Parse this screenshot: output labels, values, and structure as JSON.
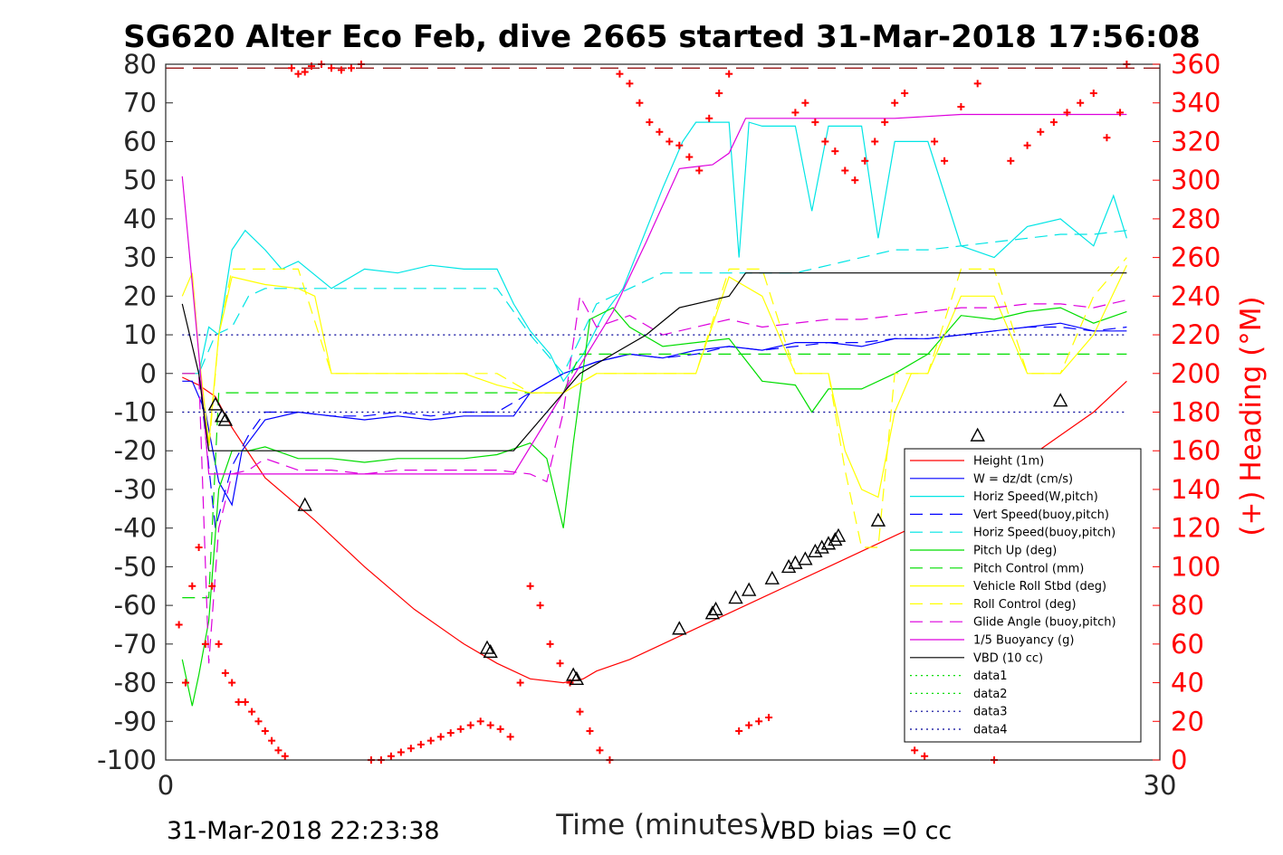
{
  "chart_data": {
    "type": "line",
    "title": "SG620 Alter Eco Feb, dive 2665 started 31-Mar-2018 17:56:08",
    "xlabel": "Time (minutes)",
    "ylabel_right": "(+) Heading (°M)",
    "xlim": [
      0,
      30
    ],
    "ylim": [
      -100,
      80
    ],
    "ylim_right": [
      0,
      360
    ],
    "x_ticks": [
      "0",
      "30"
    ],
    "y_ticks": [
      "80",
      "70",
      "60",
      "50",
      "40",
      "30",
      "20",
      "10",
      "0",
      "-10",
      "-20",
      "-30",
      "-40",
      "-50",
      "-60",
      "-70",
      "-80",
      "-90",
      "-100"
    ],
    "y_ticks_right": [
      "360",
      "340",
      "320",
      "300",
      "280",
      "260",
      "240",
      "220",
      "200",
      "180",
      "160",
      "140",
      "120",
      "100",
      "80",
      "60",
      "40",
      "20",
      "0"
    ],
    "legend_position": "lower-right",
    "footer_left": "31-Mar-2018 22:23:38",
    "footer_right": "VBD bias =0 cc",
    "colors": {
      "red": "#ff0000",
      "blue": "#0000ff",
      "cyan": "#00e5e5",
      "green": "#00dd00",
      "yellow": "#ffff00",
      "magenta": "#dd00dd",
      "black": "#000000",
      "darkred": "#8b0000",
      "navy": "#000099"
    },
    "series": [
      {
        "name": "Height (1m)",
        "color": "#ff0000",
        "dash": "solid",
        "x": [
          0.5,
          1.0,
          1.5,
          2.0,
          3.0,
          4.5,
          6.0,
          7.5,
          9.0,
          10.0,
          11.0,
          12.0,
          12.6,
          13.0,
          14.0,
          15.0,
          16.0,
          17.0,
          18.0,
          19.0,
          20.0,
          21.0,
          22.0,
          23.0,
          24.0,
          25.0,
          26.0,
          27.0,
          28.0,
          29.0
        ],
        "y": [
          -1,
          -3,
          -6,
          -14,
          -27,
          -38,
          -50,
          -61,
          -70,
          -75,
          -79,
          -80,
          -79,
          -77,
          -74,
          -70,
          -66,
          -62,
          -58,
          -54,
          -50,
          -46,
          -42,
          -38,
          -34,
          -29,
          -22,
          -16,
          -10,
          -2
        ]
      },
      {
        "name": "W = dz/dt (cm/s)",
        "color": "#0000ff",
        "dash": "solid",
        "x": [
          0.5,
          0.8,
          1.2,
          1.6,
          2.0,
          2.3,
          3.0,
          4.0,
          5.0,
          6.0,
          7.0,
          8.0,
          9.0,
          10.0,
          10.5,
          11.0,
          12.0,
          13.0,
          14.0,
          15.0,
          16.0,
          17.0,
          18.0,
          19.0,
          20.0,
          21.0,
          22.0,
          23.0,
          24.0,
          25.0,
          26.0,
          27.0,
          28.0,
          29.0
        ],
        "y": [
          -2,
          -2,
          -10,
          -28,
          -34,
          -20,
          -12,
          -10,
          -11,
          -12,
          -11,
          -12,
          -11,
          -11,
          -11,
          -5,
          0,
          3,
          5,
          4,
          6,
          7,
          6,
          8,
          8,
          7,
          9,
          9,
          10,
          11,
          12,
          13,
          11,
          11
        ]
      },
      {
        "name": "Horiz Speed(W,pitch)",
        "color": "#00e5e5",
        "dash": "solid",
        "x": [
          0.5,
          1.0,
          1.3,
          1.6,
          2.0,
          2.4,
          3.0,
          3.5,
          4.0,
          5.0,
          6.0,
          7.0,
          8.0,
          9.0,
          10.0,
          10.5,
          11.0,
          11.6,
          12.0,
          12.6,
          13.2,
          13.8,
          14.4,
          15.0,
          15.6,
          16.0,
          17.0,
          17.3,
          17.6,
          18.0,
          19.0,
          19.5,
          20.0,
          21.0,
          21.5,
          22.0,
          23.0,
          24.0,
          25.0,
          26.0,
          27.0,
          28.0,
          28.6,
          29.0
        ],
        "y": [
          0,
          0,
          12,
          10,
          32,
          37,
          32,
          27,
          29,
          22,
          27,
          26,
          28,
          27,
          27,
          18,
          11,
          5,
          -2,
          5,
          15,
          22,
          35,
          48,
          60,
          65,
          65,
          30,
          65,
          64,
          64,
          42,
          64,
          64,
          35,
          60,
          60,
          33,
          30,
          38,
          40,
          33,
          46,
          35
        ]
      },
      {
        "name": "Vert Speed(buoy,pitch)",
        "color": "#0000ff",
        "dash": "dash",
        "x": [
          0.5,
          1.0,
          1.5,
          2.0,
          2.5,
          3.0,
          4.0,
          5.0,
          6.0,
          7.0,
          8.0,
          9.0,
          10.0,
          11.0,
          12.0,
          13.0,
          14.0,
          15.0,
          16.0,
          17.0,
          18.0,
          19.0,
          20.0,
          21.0,
          22.0,
          23.0,
          24.0,
          25.0,
          26.0,
          27.0,
          28.0,
          29.0
        ],
        "y": [
          0,
          0,
          -40,
          -24,
          -16,
          -10,
          -10,
          -11,
          -11,
          -10,
          -11,
          -10,
          -10,
          -5,
          0,
          3,
          5,
          4,
          5,
          7,
          6,
          7,
          8,
          8,
          9,
          9,
          10,
          11,
          12,
          12,
          11,
          12
        ]
      },
      {
        "name": "Horiz Speed(buoy,pitch)",
        "color": "#00e5e5",
        "dash": "dash",
        "x": [
          0.5,
          1.0,
          1.5,
          2.0,
          2.5,
          3.0,
          4.0,
          5.0,
          6.0,
          7.0,
          8.0,
          9.0,
          10.0,
          11.0,
          12.0,
          13.0,
          14.0,
          15.0,
          16.0,
          17.0,
          18.0,
          19.0,
          20.0,
          21.0,
          22.0,
          23.0,
          24.0,
          25.0,
          26.0,
          27.0,
          28.0,
          29.0
        ],
        "y": [
          0,
          0,
          10,
          12,
          20,
          22,
          22,
          22,
          22,
          22,
          22,
          22,
          22,
          10,
          0,
          18,
          22,
          26,
          26,
          26,
          26,
          26,
          28,
          30,
          32,
          32,
          33,
          34,
          35,
          36,
          36,
          37
        ]
      },
      {
        "name": "Pitch Up (deg)",
        "color": "#00dd00",
        "dash": "solid",
        "x": [
          0.5,
          0.8,
          1.0,
          1.3,
          1.6,
          2.0,
          2.5,
          3.0,
          4.0,
          5.0,
          6.0,
          7.0,
          8.0,
          9.0,
          10.0,
          11.0,
          11.5,
          12.0,
          12.3,
          12.8,
          13.5,
          14.0,
          15.0,
          16.0,
          17.0,
          18.0,
          19.0,
          19.5,
          20.0,
          21.0,
          22.0,
          23.0,
          24.0,
          25.0,
          26.0,
          27.0,
          28.0,
          29.0
        ],
        "y": [
          -74,
          -86,
          -78,
          -64,
          -30,
          -20,
          -20,
          -19,
          -22,
          -22,
          -23,
          -22,
          -22,
          -22,
          -21,
          -18,
          -22,
          -40,
          -18,
          14,
          17,
          12,
          7,
          8,
          9,
          -2,
          -3,
          -10,
          -4,
          -4,
          0,
          5,
          15,
          14,
          16,
          17,
          13,
          16
        ]
      },
      {
        "name": "Pitch Control (mm)",
        "color": "#00dd00",
        "dash": "dash",
        "x": [
          0.5,
          1.3,
          1.6,
          10.0,
          11.0,
          12.0,
          12.5,
          16.0,
          20.0,
          24.0,
          28.0,
          29.0
        ],
        "y": [
          -58,
          -58,
          -5,
          -5,
          -5,
          -5,
          5,
          5,
          5,
          5,
          5,
          5
        ]
      },
      {
        "name": "Vehicle Roll Stbd (deg)",
        "color": "#ffff00",
        "dash": "solid",
        "x": [
          0.5,
          0.8,
          1.0,
          1.3,
          1.6,
          2.0,
          3.0,
          4.0,
          4.5,
          5.0,
          6.0,
          7.0,
          8.0,
          9.0,
          10.0,
          11.0,
          12.0,
          13.0,
          14.0,
          15.0,
          16.0,
          17.0,
          18.0,
          19.0,
          20.0,
          20.5,
          21.0,
          21.5,
          22.0,
          22.5,
          23.0,
          24.0,
          25.0,
          26.0,
          27.0,
          28.0,
          29.0
        ],
        "y": [
          20,
          26,
          5,
          -18,
          10,
          25,
          23,
          22,
          20,
          0,
          0,
          0,
          0,
          0,
          -3,
          -5,
          -5,
          0,
          0,
          0,
          0,
          25,
          20,
          0,
          0,
          -20,
          -30,
          -32,
          -10,
          0,
          0,
          20,
          20,
          0,
          0,
          10,
          28
        ]
      },
      {
        "name": "Roll Control (deg)",
        "color": "#ffff00",
        "dash": "dash",
        "x": [
          0.5,
          1.0,
          1.3,
          1.6,
          2.0,
          3.0,
          4.0,
          5.0,
          6.0,
          7.0,
          8.0,
          9.0,
          10.0,
          11.0,
          12.0,
          13.0,
          14.0,
          15.0,
          16.0,
          17.0,
          18.0,
          19.0,
          20.0,
          20.5,
          21.0,
          21.5,
          22.0,
          23.0,
          24.0,
          25.0,
          26.0,
          27.0,
          28.0,
          29.0
        ],
        "y": [
          0,
          0,
          -20,
          10,
          27,
          27,
          27,
          0,
          0,
          0,
          0,
          0,
          0,
          -5,
          -5,
          0,
          0,
          0,
          0,
          27,
          27,
          0,
          0,
          -25,
          -45,
          -45,
          0,
          0,
          27,
          27,
          0,
          0,
          20,
          30
        ]
      },
      {
        "name": "Glide Angle (buoy,pitch)",
        "color": "#dd00dd",
        "dash": "dash",
        "x": [
          0.5,
          1.0,
          1.3,
          1.6,
          2.0,
          2.5,
          3.0,
          4.0,
          5.0,
          6.0,
          7.0,
          8.0,
          9.0,
          10.0,
          11.0,
          11.5,
          12.0,
          12.5,
          13.0,
          14.0,
          15.0,
          16.0,
          17.0,
          18.0,
          19.0,
          20.0,
          21.0,
          22.0,
          23.0,
          24.0,
          25.0,
          26.0,
          27.0,
          28.0,
          29.0
        ],
        "y": [
          0,
          0,
          -75,
          -40,
          -26,
          -25,
          -22,
          -25,
          -25,
          -26,
          -25,
          -25,
          -25,
          -25,
          -26,
          -28,
          -10,
          20,
          12,
          15,
          10,
          12,
          14,
          12,
          13,
          14,
          14,
          15,
          16,
          17,
          17,
          18,
          18,
          17,
          19
        ]
      },
      {
        "name": "1/5 Buoyancy (g)",
        "color": "#dd00dd",
        "dash": "solid",
        "x": [
          0.5,
          1.0,
          1.3,
          1.6,
          2.0,
          10.0,
          10.5,
          11.5,
          12.5,
          13.5,
          14.5,
          15.5,
          16.5,
          17.0,
          17.5,
          20.0,
          22.0,
          24.0,
          26.0,
          28.0,
          29.0
        ],
        "y": [
          51,
          5,
          -26,
          -26,
          -26,
          -26,
          -26,
          -12,
          2,
          16,
          34,
          53,
          54,
          57,
          66,
          66,
          66,
          67,
          67,
          67,
          67
        ]
      },
      {
        "name": "VBD (10 cc)",
        "color": "#000000",
        "dash": "solid",
        "x": [
          0.5,
          1.0,
          1.3,
          1.6,
          10.0,
          10.5,
          11.5,
          12.5,
          13.5,
          14.5,
          15.5,
          16.5,
          17.0,
          17.5,
          20.0,
          24.0,
          29.0
        ],
        "y": [
          18,
          0,
          -20,
          -20,
          -20,
          -20,
          -10,
          0,
          5,
          10,
          17,
          19,
          20,
          26,
          26,
          26,
          26
        ]
      },
      {
        "name": "data1",
        "color": "#00dd00",
        "dash": "dot",
        "x": [],
        "y": []
      },
      {
        "name": "data2",
        "color": "#00dd00",
        "dash": "dot",
        "x": [],
        "y": []
      },
      {
        "name": "data3",
        "color": "#000099",
        "dash": "dot",
        "x": [
          0.5,
          29.0
        ],
        "y": [
          10,
          10
        ]
      },
      {
        "name": "data4",
        "color": "#000099",
        "dash": "dot",
        "x": [
          0.5,
          29.0
        ],
        "y": [
          -10,
          -10
        ]
      }
    ],
    "reference_line": {
      "color": "#8b0000",
      "dash": "longdash",
      "y_right": 358
    },
    "heading_points": {
      "color": "#ff0000",
      "marker": "+",
      "x": [
        0.4,
        0.6,
        0.8,
        1.0,
        1.2,
        1.4,
        1.6,
        1.8,
        2.0,
        2.2,
        2.4,
        2.6,
        2.8,
        3.0,
        3.2,
        3.4,
        3.6,
        3.8,
        4.0,
        4.2,
        4.4,
        4.7,
        5.0,
        5.3,
        5.6,
        5.9,
        6.2,
        6.5,
        6.8,
        7.1,
        7.4,
        7.7,
        8.0,
        8.3,
        8.6,
        8.9,
        9.2,
        9.5,
        9.8,
        10.1,
        10.4,
        10.7,
        11.0,
        11.3,
        11.6,
        11.9,
        12.2,
        12.5,
        12.8,
        13.1,
        13.4,
        13.7,
        14.0,
        14.3,
        14.6,
        14.9,
        15.2,
        15.5,
        15.8,
        16.1,
        16.4,
        16.7,
        17.0,
        17.3,
        17.6,
        17.9,
        18.2,
        19.0,
        19.3,
        19.6,
        19.9,
        20.2,
        20.5,
        20.8,
        21.1,
        21.4,
        21.7,
        22.0,
        22.3,
        22.6,
        22.9,
        23.2,
        23.5,
        24.0,
        24.5,
        25.0,
        25.5,
        26.0,
        26.4,
        26.8,
        27.2,
        27.6,
        28.0,
        28.4,
        28.8,
        29.0
      ],
      "y_right": [
        70,
        40,
        90,
        110,
        60,
        90,
        60,
        45,
        40,
        30,
        30,
        25,
        20,
        15,
        10,
        5,
        2,
        358,
        355,
        356,
        359,
        360,
        358,
        357,
        358,
        360,
        0,
        0,
        2,
        4,
        6,
        8,
        10,
        12,
        14,
        16,
        18,
        20,
        18,
        16,
        12,
        40,
        90,
        80,
        60,
        50,
        40,
        25,
        15,
        5,
        0,
        355,
        350,
        340,
        330,
        325,
        320,
        318,
        312,
        305,
        332,
        345,
        355,
        15,
        18,
        20,
        22,
        335,
        340,
        330,
        320,
        315,
        305,
        300,
        310,
        320,
        330,
        340,
        345,
        5,
        2,
        320,
        310,
        338,
        350,
        0,
        310,
        318,
        325,
        330,
        335,
        340,
        345,
        322,
        335,
        360
      ]
    },
    "triangle_markers": {
      "x": [
        1.5,
        1.7,
        1.8,
        4.2,
        9.7,
        9.8,
        12.3,
        12.4,
        15.5,
        16.5,
        16.6,
        17.2,
        17.6,
        18.3,
        18.8,
        19.0,
        19.3,
        19.6,
        19.8,
        20.0,
        20.2,
        20.3,
        21.5,
        22.5,
        24.5,
        27.0
      ],
      "y": [
        -8,
        -11,
        -12,
        -34,
        -71,
        -72,
        -78,
        -79,
        -66,
        -62,
        -61,
        -58,
        -56,
        -53,
        -50,
        -49,
        -48,
        -46,
        -45,
        -44,
        -43,
        -42,
        -38,
        -32,
        -16,
        -7
      ]
    }
  }
}
